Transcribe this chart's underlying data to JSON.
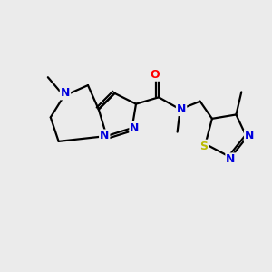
{
  "background_color": "#ebebeb",
  "atom_colors": {
    "C": "#000000",
    "N": "#0000dd",
    "O": "#ff0000",
    "S": "#bbbb00"
  },
  "figsize": [
    3.0,
    3.0
  ],
  "dpi": 100
}
